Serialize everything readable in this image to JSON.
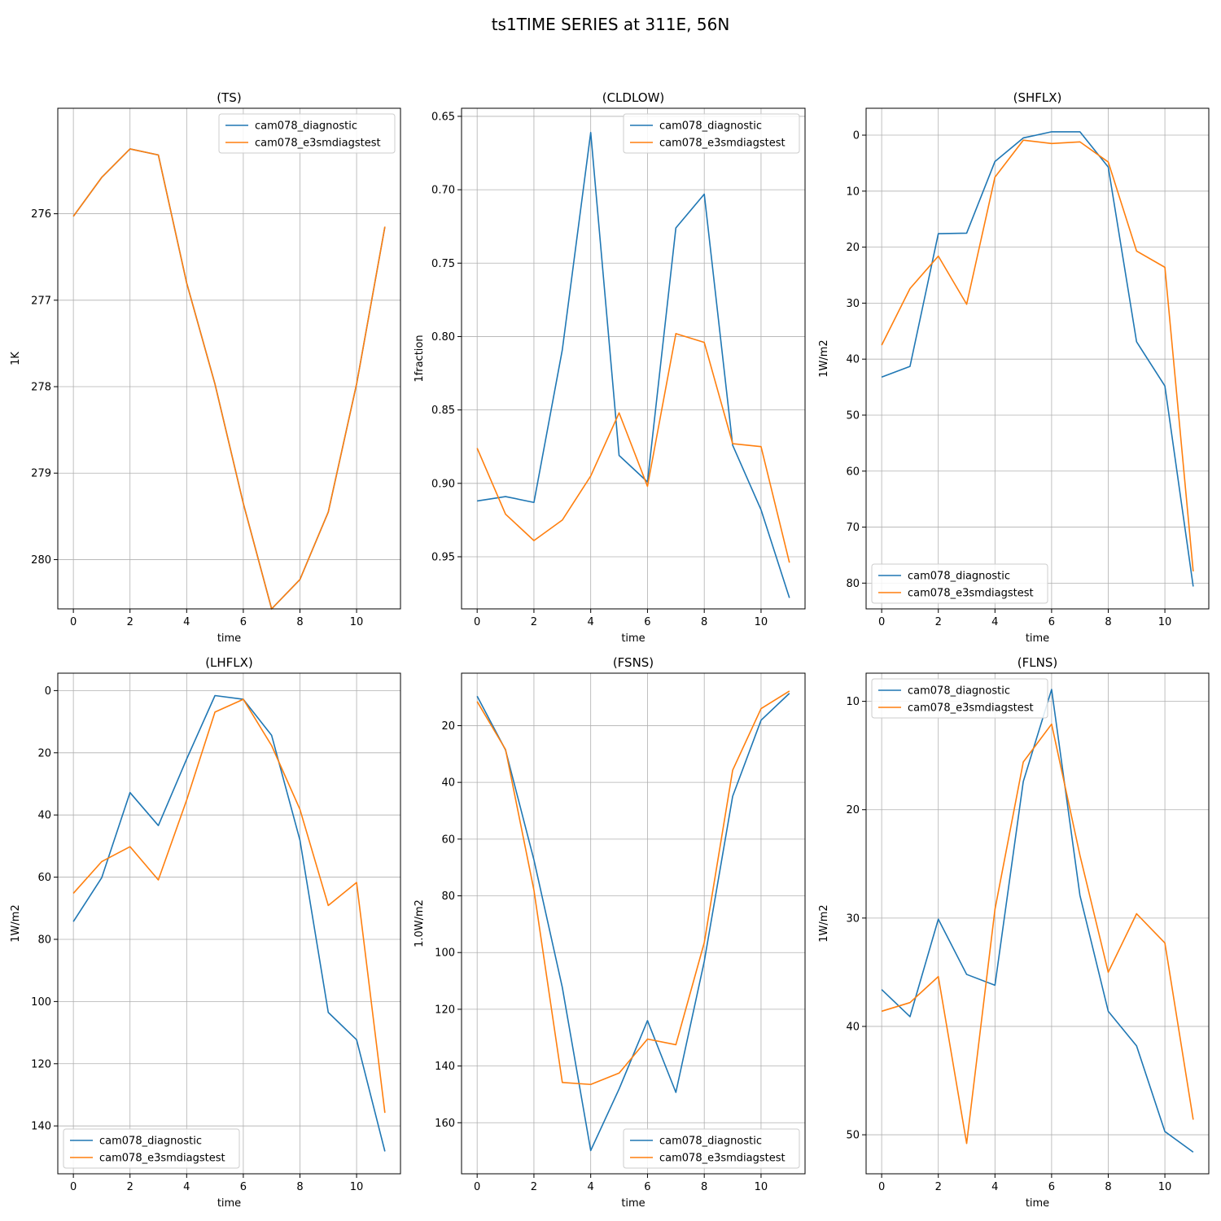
{
  "figure": {
    "suptitle": "ts1TIME SERIES at 311E, 56N"
  },
  "colors": {
    "series_1": "#1f77b4",
    "series_2": "#ff7f0e",
    "grid": "#b0b0b0",
    "frame": "#000000"
  },
  "chart_data": [
    {
      "type": "line",
      "title": "(TS)",
      "xlabel": "time",
      "ylabel": "1K",
      "ylim": [
        280.57,
        274.78
      ],
      "y_inverted": true,
      "xlim": [
        -0.55,
        11.55
      ],
      "xticks": [
        0,
        2,
        4,
        6,
        8,
        10
      ],
      "yticks": [
        276,
        277,
        278,
        279,
        280
      ],
      "grid": true,
      "legend_position": "top-right",
      "x": [
        0,
        1,
        2,
        3,
        4,
        5,
        6,
        7,
        8,
        9,
        10,
        11
      ],
      "series": [
        {
          "name": "cam078_diagnostic",
          "values": [
            276.03,
            275.58,
            275.25,
            275.32,
            276.8,
            277.97,
            279.35,
            280.57,
            280.23,
            279.45,
            277.97,
            276.15
          ]
        },
        {
          "name": "cam078_e3smdiagstest",
          "values": [
            276.03,
            275.58,
            275.25,
            275.32,
            276.8,
            277.97,
            279.35,
            280.57,
            280.23,
            279.45,
            277.97,
            276.15
          ]
        }
      ]
    },
    {
      "type": "line",
      "title": "(CLDLOW)",
      "xlabel": "time",
      "ylabel": "1fraction",
      "ylim": [
        0.9855,
        0.6445
      ],
      "y_inverted": true,
      "xlim": [
        -0.55,
        11.55
      ],
      "xticks": [
        0,
        2,
        4,
        6,
        8,
        10
      ],
      "yticks": [
        0.65,
        0.7,
        0.75,
        0.8,
        0.85,
        0.9,
        0.95
      ],
      "grid": true,
      "legend_position": "top-right",
      "x": [
        0,
        1,
        2,
        3,
        4,
        5,
        6,
        7,
        8,
        9,
        10,
        11
      ],
      "series": [
        {
          "name": "cam078_diagnostic",
          "values": [
            0.912,
            0.909,
            0.913,
            0.809,
            0.661,
            0.881,
            0.899,
            0.726,
            0.703,
            0.874,
            0.918,
            0.978
          ]
        },
        {
          "name": "cam078_e3smdiagstest",
          "values": [
            0.876,
            0.921,
            0.939,
            0.925,
            0.895,
            0.852,
            0.902,
            0.798,
            0.804,
            0.873,
            0.875,
            0.954
          ]
        }
      ]
    },
    {
      "type": "line",
      "title": "(SHFLX)",
      "xlabel": "time",
      "ylabel": "1W/m2",
      "ylim": [
        84.6,
        -4.8
      ],
      "y_inverted": true,
      "xlim": [
        -0.55,
        11.55
      ],
      "xticks": [
        0,
        2,
        4,
        6,
        8,
        10
      ],
      "yticks": [
        0,
        10,
        20,
        30,
        40,
        50,
        60,
        70,
        80
      ],
      "grid": true,
      "legend_position": "bottom-left",
      "x": [
        0,
        1,
        2,
        3,
        4,
        5,
        6,
        7,
        8,
        9,
        10,
        11
      ],
      "series": [
        {
          "name": "cam078_diagnostic",
          "values": [
            43.2,
            41.3,
            17.6,
            17.5,
            4.7,
            0.5,
            -0.6,
            -0.6,
            5.7,
            36.9,
            44.8,
            80.6
          ]
        },
        {
          "name": "cam078_e3smdiagstest",
          "values": [
            37.5,
            27.4,
            21.6,
            30.2,
            7.5,
            0.9,
            1.5,
            1.2,
            4.8,
            20.7,
            23.6,
            77.9
          ]
        }
      ]
    },
    {
      "type": "line",
      "title": "(LHFLX)",
      "xlabel": "time",
      "ylabel": "1W/m2",
      "ylim": [
        155.4,
        -5.6
      ],
      "y_inverted": true,
      "xlim": [
        -0.55,
        11.55
      ],
      "xticks": [
        0,
        2,
        4,
        6,
        8,
        10
      ],
      "yticks": [
        0,
        20,
        40,
        60,
        80,
        100,
        120,
        140
      ],
      "grid": true,
      "legend_position": "bottom-left",
      "x": [
        0,
        1,
        2,
        3,
        4,
        5,
        6,
        7,
        8,
        9,
        10,
        11
      ],
      "series": [
        {
          "name": "cam078_diagnostic",
          "values": [
            74.3,
            60.2,
            32.8,
            43.4,
            22.0,
            1.6,
            2.8,
            14.4,
            48.1,
            103.5,
            112.3,
            148.2
          ]
        },
        {
          "name": "cam078_e3smdiagstest",
          "values": [
            65.2,
            55.0,
            50.2,
            60.9,
            35.2,
            6.9,
            2.8,
            17.7,
            38.2,
            69.1,
            61.7,
            135.8
          ]
        }
      ]
    },
    {
      "type": "line",
      "title": "(FSNS)",
      "xlabel": "time",
      "ylabel": "1.0W/m2",
      "ylim": [
        178.0,
        1.5
      ],
      "y_inverted": true,
      "xlim": [
        -0.55,
        11.55
      ],
      "xticks": [
        0,
        2,
        4,
        6,
        8,
        10
      ],
      "yticks": [
        20,
        40,
        60,
        80,
        100,
        120,
        140,
        160
      ],
      "grid": true,
      "legend_position": "bottom-right",
      "x": [
        0,
        1,
        2,
        3,
        4,
        5,
        6,
        7,
        8,
        9,
        10,
        11
      ],
      "series": [
        {
          "name": "cam078_diagnostic",
          "values": [
            9.6,
            28.6,
            67.3,
            112.3,
            169.8,
            148.1,
            124.0,
            149.3,
            103.1,
            44.9,
            18.1,
            8.6
          ]
        },
        {
          "name": "cam078_e3smdiagstest",
          "values": [
            11.5,
            28.4,
            78.0,
            145.8,
            146.5,
            142.5,
            130.5,
            132.5,
            96.5,
            35.7,
            14.0,
            7.8
          ]
        }
      ]
    },
    {
      "type": "line",
      "title": "(FLNS)",
      "xlabel": "time",
      "ylabel": "1W/m2",
      "ylim": [
        53.6,
        7.4
      ],
      "y_inverted": true,
      "xlim": [
        -0.55,
        11.55
      ],
      "xticks": [
        0,
        2,
        4,
        6,
        8,
        10
      ],
      "yticks": [
        10,
        20,
        30,
        40,
        50
      ],
      "grid": true,
      "legend_position": "top-left",
      "x": [
        0,
        1,
        2,
        3,
        4,
        5,
        6,
        7,
        8,
        9,
        10,
        11
      ],
      "series": [
        {
          "name": "cam078_diagnostic",
          "values": [
            36.6,
            39.1,
            30.1,
            35.2,
            36.2,
            17.4,
            8.9,
            27.9,
            38.6,
            41.8,
            49.7,
            51.6
          ]
        },
        {
          "name": "cam078_e3smdiagstest",
          "values": [
            38.6,
            37.8,
            35.4,
            50.8,
            29.2,
            15.6,
            12.1,
            24.2,
            35.0,
            29.6,
            32.3,
            48.6
          ]
        }
      ]
    }
  ]
}
